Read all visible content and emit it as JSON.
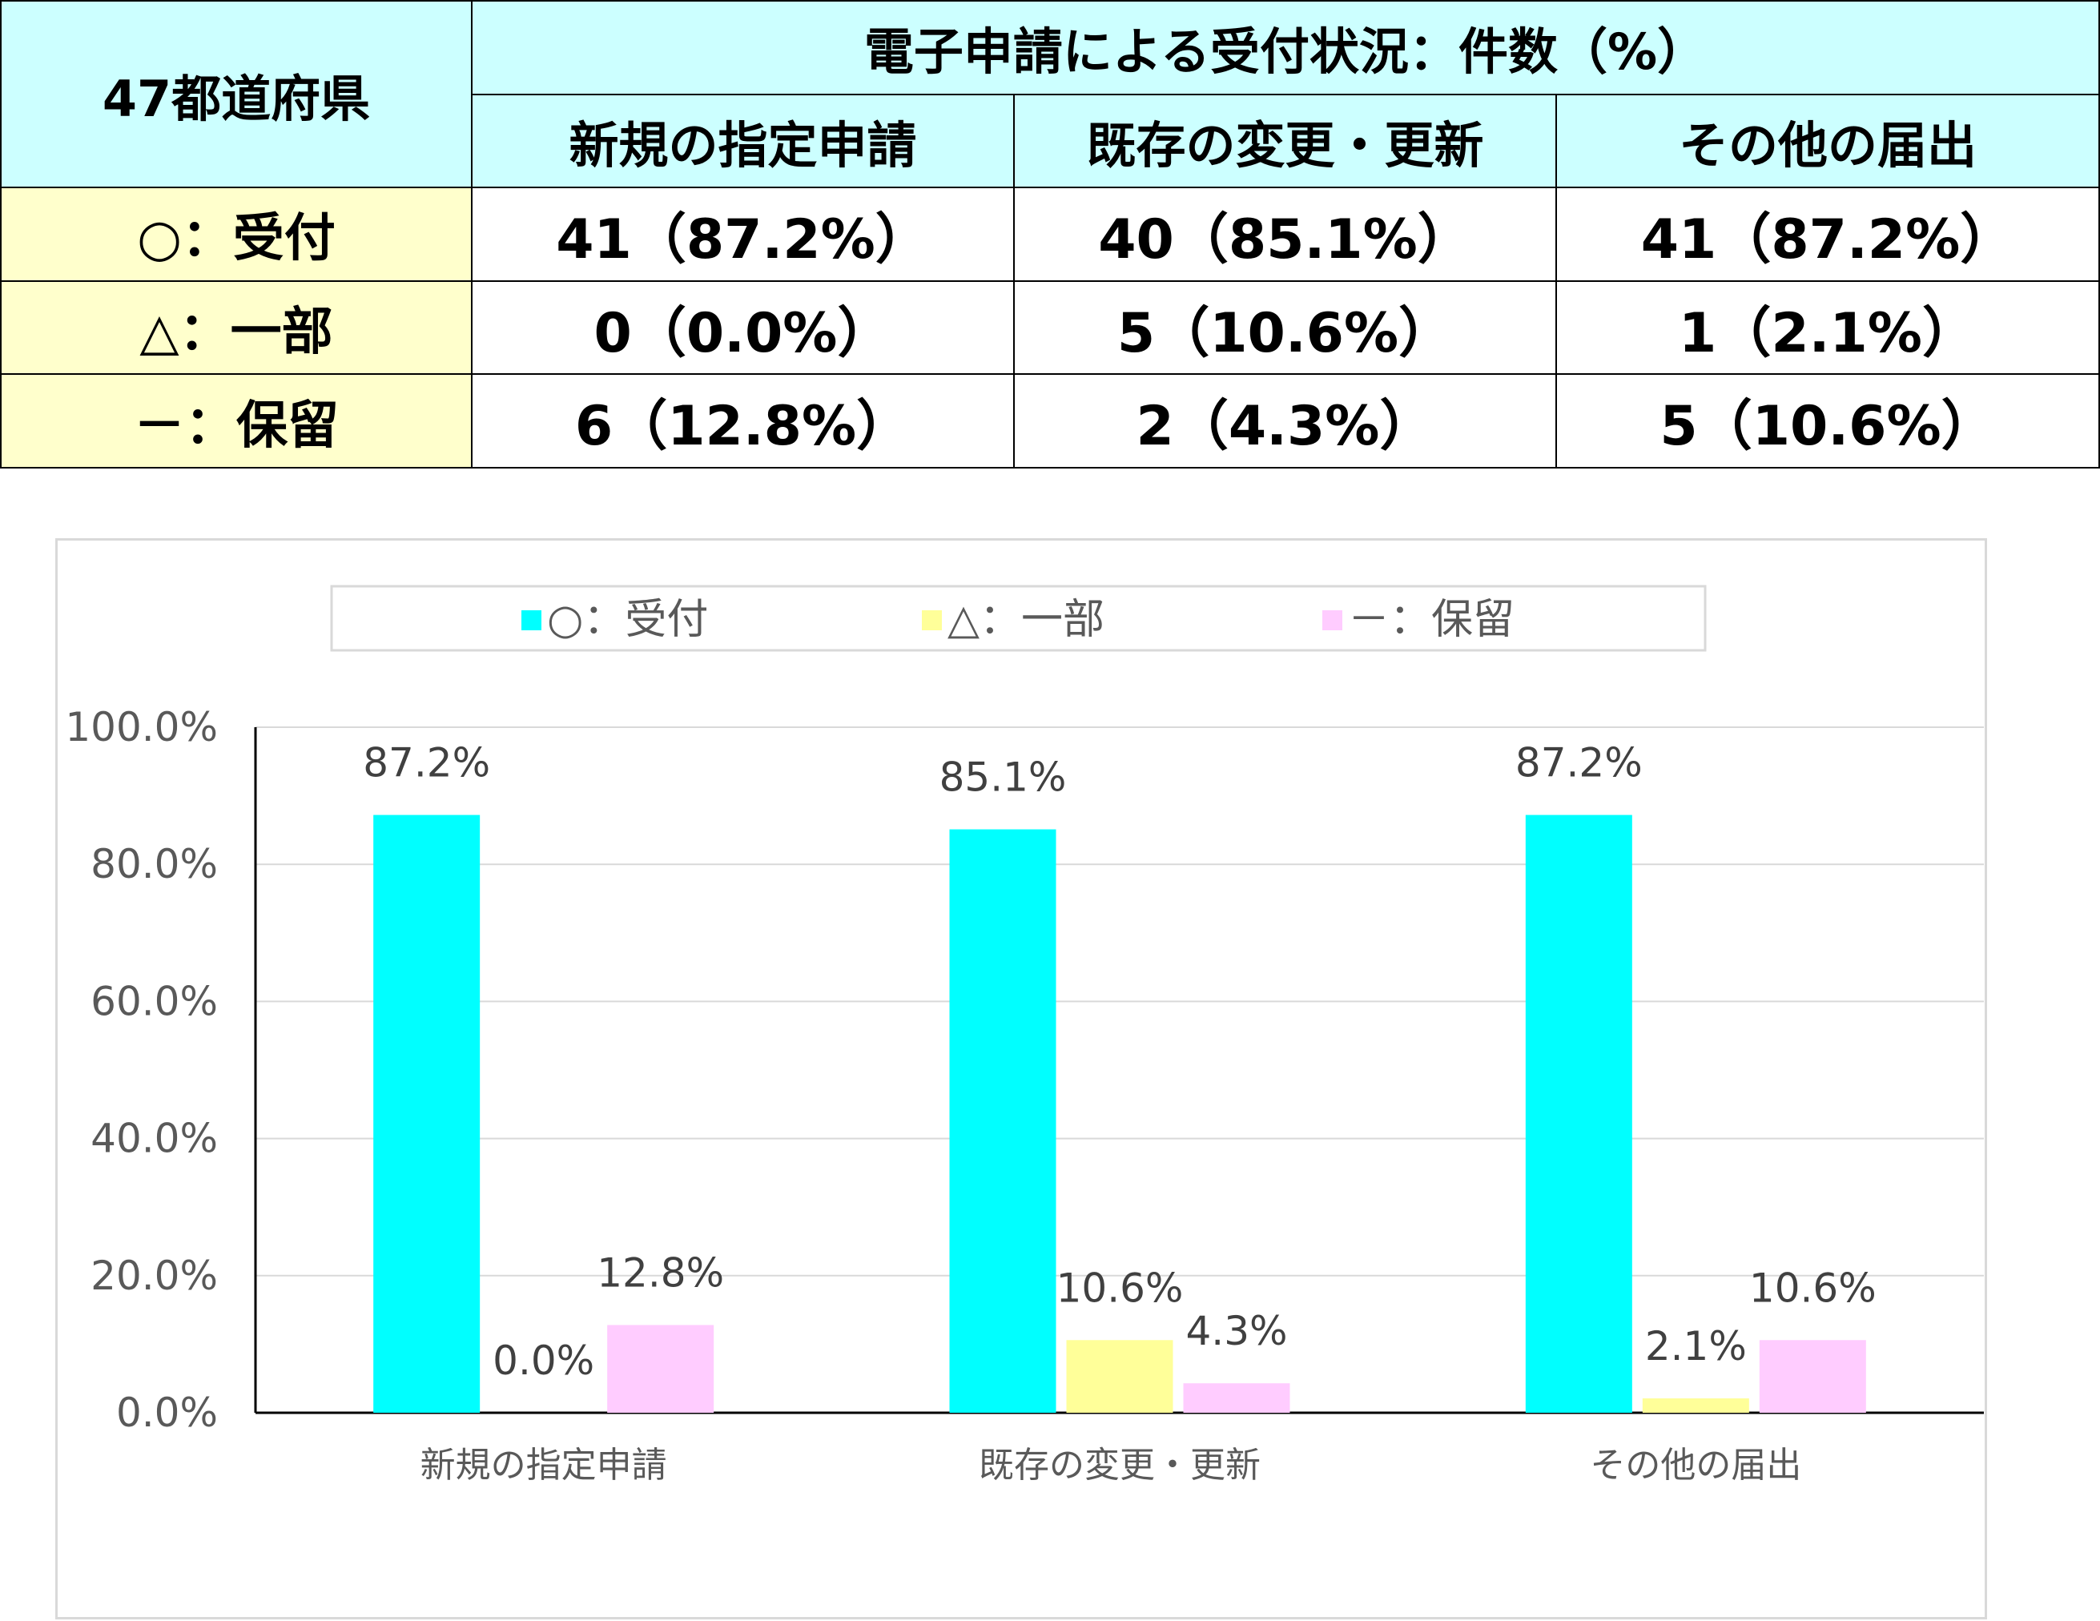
{
  "table": {
    "corner": "47都道府県",
    "title": "電子申請による受付状況：件数（%）",
    "columns": [
      "新規の指定申請",
      "既存の変更・更新",
      "その他の届出"
    ],
    "rows": [
      {
        "label": "○：受付",
        "cells": [
          "41（87.2%）",
          "40（85.1%）",
          "41（87.2%）"
        ]
      },
      {
        "label": "△：一部",
        "cells": [
          "0（0.0%）",
          "5（10.6%）",
          "1（2.1%）"
        ]
      },
      {
        "label": "－：保留",
        "cells": [
          "6（12.8%）",
          "2（4.3%）",
          "5（10.6%）"
        ]
      }
    ]
  },
  "chart_data": {
    "type": "bar",
    "categories": [
      "新規の指定申請",
      "既存の変更・更新",
      "その他の届出"
    ],
    "series": [
      {
        "name": "○：受付",
        "values": [
          87.2,
          85.1,
          87.2
        ],
        "labels": [
          "87.2%",
          "85.1%",
          "87.2%"
        ],
        "color": "#00ffff"
      },
      {
        "name": "△：一部",
        "values": [
          0.0,
          10.6,
          2.1
        ],
        "labels": [
          "0.0%",
          "10.6%",
          "2.1%"
        ],
        "color": "#ffff99"
      },
      {
        "name": "－：保留",
        "values": [
          12.8,
          4.3,
          10.6
        ],
        "labels": [
          "12.8%",
          "4.3%",
          "10.6%"
        ],
        "color": "#ffccff"
      }
    ],
    "ylim": [
      0,
      100
    ],
    "yticks": [
      0,
      20,
      40,
      60,
      80,
      100
    ],
    "ytick_labels": [
      "0.0%",
      "20.0%",
      "40.0%",
      "60.0%",
      "80.0%",
      "100.0%"
    ],
    "grid": true,
    "legend": "top",
    "colors": {
      "gridline": "#d9d9d9",
      "axis": "#000000",
      "text": "#595959"
    }
  }
}
